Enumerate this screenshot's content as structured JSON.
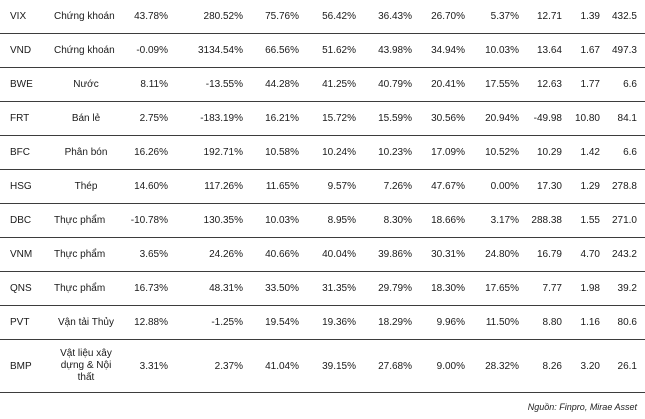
{
  "table": {
    "rows": [
      {
        "ticker": "VIX",
        "sector": "Chứng khoán",
        "values": [
          "43.78%",
          "280.52%",
          "75.76%",
          "56.42%",
          "36.43%",
          "26.70%",
          "5.37%",
          "12.71",
          "1.39",
          "432.5"
        ]
      },
      {
        "ticker": "VND",
        "sector": "Chứng khoán",
        "values": [
          "-0.09%",
          "3134.54%",
          "66.56%",
          "51.62%",
          "43.98%",
          "34.94%",
          "10.03%",
          "13.64",
          "1.67",
          "497.3"
        ]
      },
      {
        "ticker": "BWE",
        "sector": "Nước",
        "values": [
          "8.11%",
          "-13.55%",
          "44.28%",
          "41.25%",
          "40.79%",
          "20.41%",
          "17.55%",
          "12.63",
          "1.77",
          "6.6"
        ]
      },
      {
        "ticker": "FRT",
        "sector": "Bán lẻ",
        "values": [
          "2.75%",
          "-183.19%",
          "16.21%",
          "15.72%",
          "15.59%",
          "30.56%",
          "20.94%",
          "-49.98",
          "10.80",
          "84.1"
        ]
      },
      {
        "ticker": "BFC",
        "sector": "Phân bón",
        "values": [
          "16.26%",
          "192.71%",
          "10.58%",
          "10.24%",
          "10.23%",
          "17.09%",
          "10.52%",
          "10.29",
          "1.42",
          "6.6"
        ]
      },
      {
        "ticker": "HSG",
        "sector": "Thép",
        "values": [
          "14.60%",
          "117.26%",
          "11.65%",
          "9.57%",
          "7.26%",
          "47.67%",
          "0.00%",
          "17.30",
          "1.29",
          "278.8"
        ]
      },
      {
        "ticker": "DBC",
        "sector": "Thực phẩm",
        "values": [
          "-10.78%",
          "130.35%",
          "10.03%",
          "8.95%",
          "8.30%",
          "18.66%",
          "3.17%",
          "288.38",
          "1.55",
          "271.0"
        ]
      },
      {
        "ticker": "VNM",
        "sector": "Thực phẩm",
        "values": [
          "3.65%",
          "24.26%",
          "40.66%",
          "40.04%",
          "39.86%",
          "30.31%",
          "24.80%",
          "16.79",
          "4.70",
          "243.2"
        ]
      },
      {
        "ticker": "QNS",
        "sector": "Thực phẩm",
        "values": [
          "16.73%",
          "48.31%",
          "33.50%",
          "31.35%",
          "29.79%",
          "18.30%",
          "17.65%",
          "7.77",
          "1.98",
          "39.2"
        ]
      },
      {
        "ticker": "PVT",
        "sector": "Vận tải Thủy",
        "values": [
          "12.88%",
          "-1.25%",
          "19.54%",
          "19.36%",
          "18.29%",
          "9.96%",
          "11.50%",
          "8.80",
          "1.16",
          "80.6"
        ]
      },
      {
        "ticker": "BMP",
        "sector": "Vật liệu xây dựng & Nội thất",
        "values": [
          "3.31%",
          "2.37%",
          "41.04%",
          "39.15%",
          "27.68%",
          "9.00%",
          "28.32%",
          "8.26",
          "3.20",
          "26.1"
        ]
      }
    ]
  },
  "source": "Nguồn: Finpro, Mirae Asset"
}
